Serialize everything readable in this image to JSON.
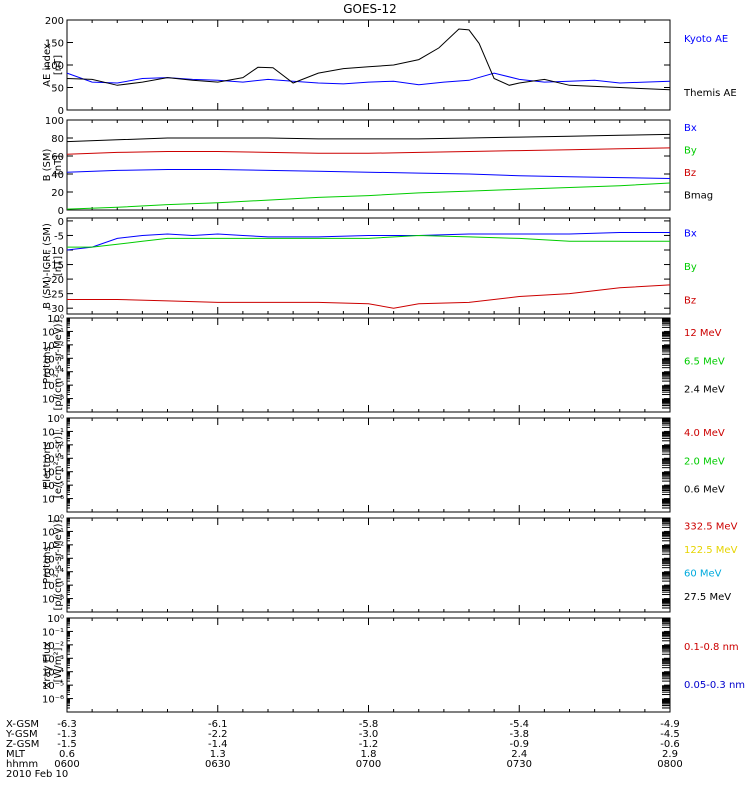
{
  "chart_data": {
    "title": "GOES-12",
    "type": "line",
    "x_ticks": [
      "0600",
      "0630",
      "0700",
      "0730",
      "0800"
    ],
    "footer": {
      "rows": [
        {
          "label": "X-GSM",
          "values": [
            "-6.3",
            "-6.1",
            "-5.8",
            "-5.4",
            "-4.9"
          ]
        },
        {
          "label": "Y-GSM",
          "values": [
            "-1.3",
            "-2.2",
            "-3.0",
            "-3.8",
            "-4.5"
          ]
        },
        {
          "label": "Z-GSM",
          "values": [
            "-1.5",
            "-1.4",
            "-1.2",
            "-0.9",
            "-0.6"
          ]
        },
        {
          "label": "MLT",
          "values": [
            "0.6",
            "1.3",
            "1.8",
            "2.4",
            "2.9"
          ]
        },
        {
          "label": "hhmm",
          "values": [
            "0600",
            "0630",
            "0700",
            "0730",
            "0800"
          ]
        }
      ],
      "date": "2010 Feb 10"
    },
    "panels": [
      {
        "ylabel": [
          "AE index",
          "[nT]"
        ],
        "scale": "linear",
        "ylim": [
          0,
          200
        ],
        "yticks": [
          "0",
          "50",
          "100",
          "150",
          "200"
        ],
        "series": [
          {
            "name": "Kyoto AE",
            "color": "#0000ff",
            "label_pos": 0.2,
            "x": [
              0,
              5,
              10,
              15,
              20,
              25,
              30,
              35,
              40,
              45,
              50,
              55,
              60,
              65,
              70,
              75,
              80,
              85,
              90,
              95,
              100,
              105,
              110,
              115,
              120
            ],
            "y": [
              82,
              62,
              60,
              70,
              72,
              68,
              66,
              62,
              68,
              64,
              60,
              58,
              62,
              64,
              56,
              62,
              66,
              82,
              68,
              62,
              64,
              66,
              60,
              62,
              64
            ]
          },
          {
            "name": "Themis AE",
            "color": "#000000",
            "label_pos": 0.8,
            "x": [
              0,
              5,
              10,
              15,
              20,
              25,
              30,
              35,
              38,
              41,
              45,
              50,
              55,
              60,
              65,
              70,
              74,
              78,
              80,
              82,
              85,
              88,
              90,
              95,
              100,
              110,
              120
            ],
            "y": [
              70,
              68,
              55,
              62,
              72,
              66,
              62,
              72,
              95,
              94,
              60,
              82,
              92,
              96,
              100,
              112,
              138,
              180,
              178,
              148,
              70,
              55,
              60,
              68,
              55,
              50,
              45
            ]
          }
        ]
      },
      {
        "ylabel": [
          "B (SM)",
          "[nT]"
        ],
        "scale": "linear",
        "ylim": [
          0,
          100
        ],
        "yticks": [
          "0",
          "20",
          "40",
          "60",
          "80",
          "100"
        ],
        "series": [
          {
            "name": "Bx",
            "color": "#0000ff",
            "label_pos": 0.08,
            "x": [
              0,
              10,
              20,
              30,
              40,
              50,
              60,
              70,
              80,
              90,
              100,
              110,
              120
            ],
            "y": [
              42,
              44,
              45,
              45,
              44,
              43,
              42,
              41,
              40,
              38,
              37,
              36,
              35
            ]
          },
          {
            "name": "By",
            "color": "#00cc00",
            "label_pos": 0.33,
            "x": [
              0,
              10,
              20,
              30,
              40,
              50,
              60,
              70,
              80,
              90,
              100,
              110,
              120
            ],
            "y": [
              1,
              3,
              6,
              8,
              11,
              14,
              16,
              19,
              21,
              23,
              25,
              27,
              30
            ]
          },
          {
            "name": "Bz",
            "color": "#cc0000",
            "label_pos": 0.58,
            "x": [
              0,
              10,
              20,
              30,
              40,
              50,
              60,
              70,
              80,
              90,
              100,
              110,
              120
            ],
            "y": [
              62,
              64,
              65,
              65,
              64,
              63,
              63,
              64,
              65,
              66,
              67,
              68,
              69
            ]
          },
          {
            "name": "Bmag",
            "color": "#000000",
            "label_pos": 0.83,
            "x": [
              0,
              10,
              20,
              30,
              40,
              50,
              60,
              70,
              80,
              90,
              100,
              110,
              120
            ],
            "y": [
              76,
              78,
              80,
              80,
              80,
              79,
              79,
              79,
              80,
              81,
              82,
              83,
              84
            ]
          }
        ]
      },
      {
        "ylabel": [
          "B (SM)-IGRF (SM)",
          "[nT]"
        ],
        "scale": "linear",
        "ylim": [
          -32,
          1
        ],
        "yticks": [
          "-30",
          "-25",
          "-20",
          "-15",
          "-10",
          "-5",
          "0"
        ],
        "tick_values": [
          -30,
          -25,
          -20,
          -15,
          -10,
          -5,
          0
        ],
        "series": [
          {
            "name": "Bx",
            "color": "#0000ff",
            "label_pos": 0.15,
            "x": [
              0,
              5,
              10,
              15,
              20,
              25,
              30,
              35,
              40,
              50,
              60,
              70,
              80,
              90,
              100,
              110,
              120
            ],
            "y": [
              -10,
              -9,
              -6,
              -5,
              -4.5,
              -5,
              -4.5,
              -5,
              -5.5,
              -5.5,
              -5,
              -5,
              -4.5,
              -4.5,
              -4.5,
              -4,
              -4
            ]
          },
          {
            "name": "By",
            "color": "#00cc00",
            "label_pos": 0.5,
            "x": [
              0,
              5,
              10,
              15,
              20,
              25,
              30,
              40,
              50,
              60,
              70,
              80,
              90,
              100,
              110,
              120
            ],
            "y": [
              -9,
              -9,
              -8,
              -7,
              -6,
              -6,
              -6,
              -6,
              -6,
              -6,
              -5,
              -5.5,
              -6,
              -7,
              -7,
              -7
            ]
          },
          {
            "name": "Bz",
            "color": "#cc0000",
            "label_pos": 0.85,
            "x": [
              0,
              10,
              20,
              30,
              40,
              50,
              60,
              65,
              70,
              80,
              90,
              100,
              110,
              120
            ],
            "y": [
              -27,
              -27,
              -27.5,
              -28,
              -28,
              -28,
              -28.5,
              -30,
              -28.5,
              -28,
              -26,
              -25,
              -23,
              -22
            ]
          }
        ]
      },
      {
        "ylabel": [
          "Protons",
          "[p/(cm²-s-sr-MeV)]"
        ],
        "scale": "log",
        "yticks": [
          "10⁰",
          "10⁻¹",
          "10⁻²",
          "10⁻³",
          "10⁻⁴",
          "10⁻⁵",
          "10⁻⁶"
        ],
        "tick_values": [
          0,
          -1,
          -2,
          -3,
          -4,
          -5,
          -6
        ],
        "ylim": [
          -7,
          0
        ],
        "series": [
          {
            "name": "12 MeV",
            "color": "#cc0000",
            "label_pos": 0.15
          },
          {
            "name": "6.5 MeV",
            "color": "#00cc00",
            "label_pos": 0.45
          },
          {
            "name": "2.4 MeV",
            "color": "#000000",
            "label_pos": 0.75
          }
        ]
      },
      {
        "ylabel": [
          "Electrons",
          "[e/(cm²-s-sr)]"
        ],
        "scale": "log",
        "yticks": [
          "10⁰",
          "10⁻¹",
          "10⁻²",
          "10⁻³",
          "10⁻⁴",
          "10⁻⁵",
          "10⁻⁶"
        ],
        "tick_values": [
          0,
          -1,
          -2,
          -3,
          -4,
          -5,
          -6
        ],
        "ylim": [
          -7,
          0
        ],
        "series": [
          {
            "name": "4.0 MeV",
            "color": "#cc0000",
            "label_pos": 0.15
          },
          {
            "name": "2.0 MeV",
            "color": "#00cc00",
            "label_pos": 0.45
          },
          {
            "name": "0.6 MeV",
            "color": "#000000",
            "label_pos": 0.75
          }
        ]
      },
      {
        "ylabel": [
          "Protons",
          "[p/(cm²-s-sr-MeV)]"
        ],
        "scale": "log",
        "yticks": [
          "10⁰",
          "10⁻¹",
          "10⁻²",
          "10⁻³",
          "10⁻⁴",
          "10⁻⁵",
          "10⁻⁶"
        ],
        "tick_values": [
          0,
          -1,
          -2,
          -3,
          -4,
          -5,
          -6
        ],
        "ylim": [
          -7,
          0
        ],
        "series": [
          {
            "name": "332.5 MeV",
            "color": "#cc0000",
            "label_pos": 0.08
          },
          {
            "name": "122.5 MeV",
            "color": "#e6d400",
            "label_pos": 0.33
          },
          {
            "name": "60 MeV",
            "color": "#00aadd",
            "label_pos": 0.58
          },
          {
            "name": "27.5 MeV",
            "color": "#000000",
            "label_pos": 0.83
          }
        ]
      },
      {
        "ylabel": [
          "Xray Flux",
          "[W/m²]"
        ],
        "scale": "log",
        "yticks": [
          "10⁰",
          "10⁻¹",
          "10⁻²",
          "10⁻³",
          "10⁻⁴",
          "10⁻⁵",
          "10⁻⁶"
        ],
        "tick_values": [
          0,
          -1,
          -2,
          -3,
          -4,
          -5,
          -6
        ],
        "ylim": [
          -7,
          0
        ],
        "series": [
          {
            "name": "0.1-0.8 nm",
            "color": "#cc0000",
            "label_pos": 0.3
          },
          {
            "name": "0.05-0.3 nm",
            "color": "#0000cc",
            "label_pos": 0.7
          }
        ]
      }
    ]
  }
}
